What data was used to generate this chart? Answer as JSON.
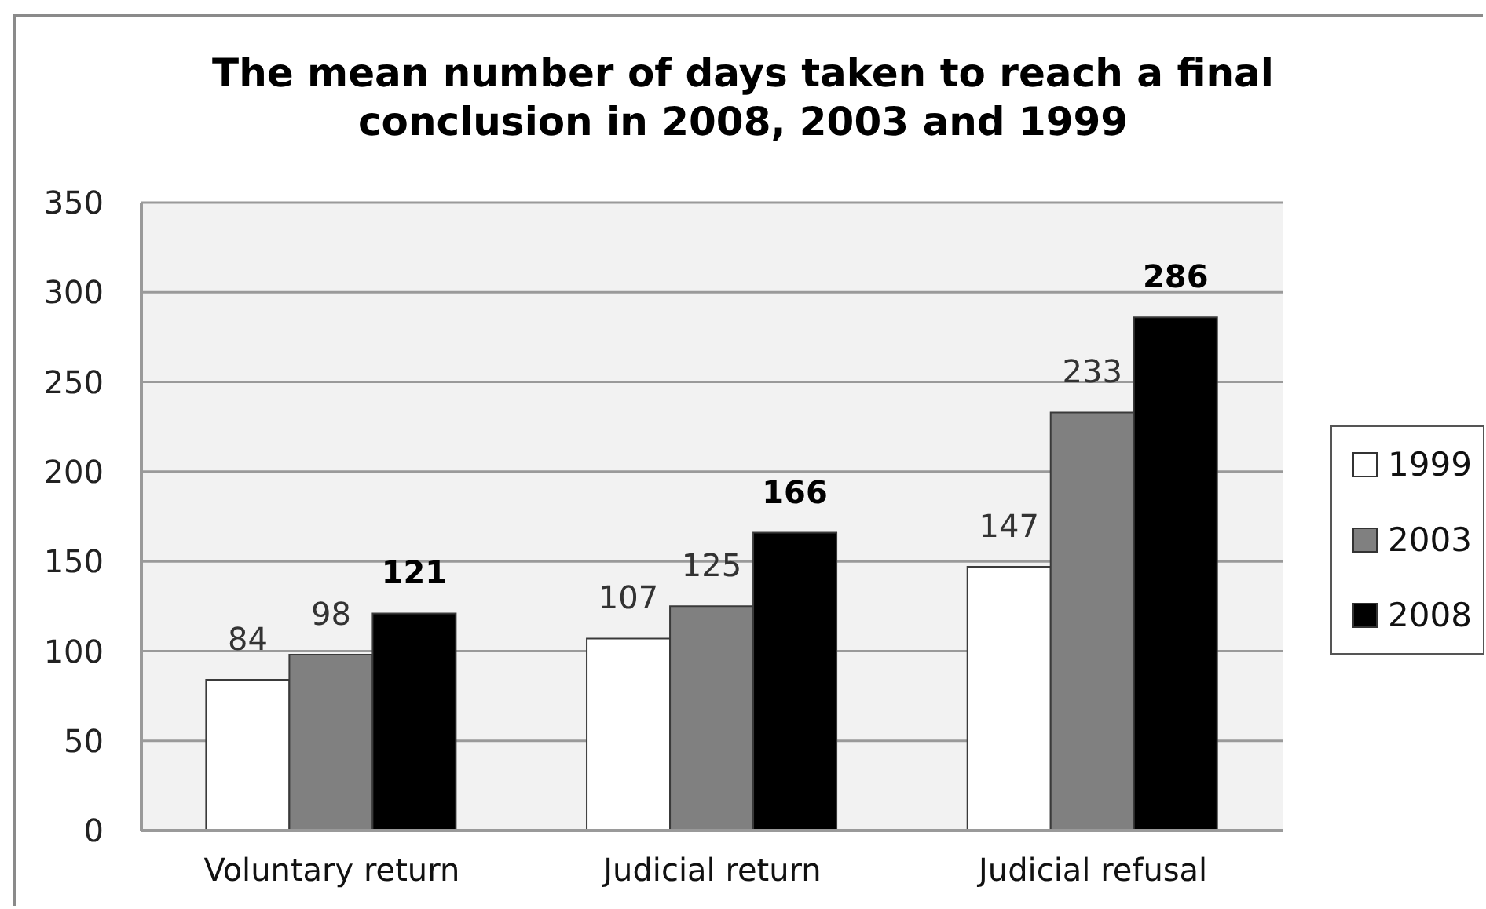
{
  "chart_data": {
    "type": "bar",
    "title": "The mean number of days taken to reach a final conclusion in 2008, 2003 and 1999",
    "categories": [
      "Voluntary return",
      "Judicial return",
      "Judicial refusal"
    ],
    "series": [
      {
        "name": "1999",
        "color": "#ffffff",
        "values": [
          84,
          107,
          147
        ]
      },
      {
        "name": "2003",
        "color": "#808080",
        "values": [
          98,
          125,
          233
        ]
      },
      {
        "name": "2008",
        "color": "#000000",
        "values": [
          121,
          166,
          286
        ]
      }
    ],
    "ylim": [
      0,
      350
    ],
    "yticks": [
      0,
      50,
      100,
      150,
      200,
      250,
      300,
      350
    ],
    "grid": "y",
    "legend": "right",
    "data_labels": true
  }
}
